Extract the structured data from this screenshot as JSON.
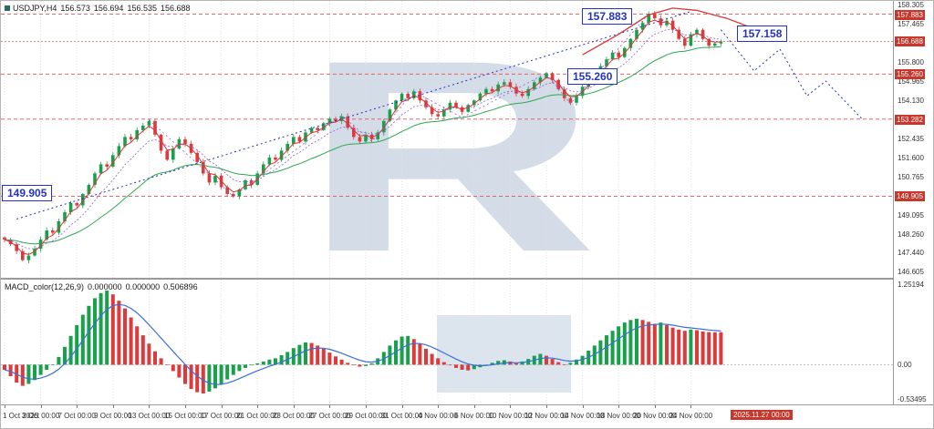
{
  "header": {
    "symbol": "USDJPY,H4",
    "open": "156.573",
    "high": "156.694",
    "low": "156.535",
    "close": "156.688"
  },
  "macd_header": {
    "name": "MACD_color(12,26,9)",
    "values": [
      "0.000000",
      "0.000000",
      "0.506896"
    ]
  },
  "watermark": {
    "letter": "R"
  },
  "colors": {
    "up": "#18a14b",
    "down": "#dd3b3b",
    "ma_fast": "#d93636",
    "ma_slow": "#30a752",
    "ma_mid": "#8a63d2",
    "signal": "#3a6fd8",
    "level": "#e05555",
    "annotation": "#2433c0",
    "badge_bg": "#c8372c",
    "grid": "#e3e3e3"
  },
  "chart_data": [
    {
      "type": "candlestick",
      "title": "USDJPY,H4",
      "timeframe": "H4",
      "x_ticks": [
        "1 Oct 2025",
        "3 Oct 00:00",
        "7 Oct 00:00",
        "9 Oct 00:00",
        "13 Oct 00:00",
        "15 Oct 00:00",
        "17 Oct 00:00",
        "21 Oct 00:00",
        "23 Oct 00:00",
        "27 Oct 00:00",
        "29 Oct 00:00",
        "31 Oct 00:00",
        "4 Nov 00:00",
        "6 Nov 00:00",
        "10 Nov 00:00",
        "12 Nov 00:00",
        "14 Nov 00:00",
        "18 Nov 00:00",
        "20 Nov 00:00",
        "24 Nov 00:00"
      ],
      "future_tick": "2025.11.27 00:00",
      "y_ticks": [
        158.305,
        157.465,
        156.625,
        155.8,
        154.965,
        154.13,
        153.295,
        152.435,
        151.6,
        150.765,
        149.93,
        149.095,
        148.26,
        147.44,
        146.605
      ],
      "y_range": [
        146.325,
        158.465
      ],
      "levels": [
        157.883,
        155.26,
        153.282,
        149.905
      ],
      "level_labels": [
        157.883,
        155.26,
        153.282,
        149.905
      ],
      "current_price": 156.688,
      "closes": [
        148.0,
        147.8,
        147.5,
        147.1,
        147.3,
        147.6,
        148.0,
        148.4,
        148.3,
        148.8,
        149.2,
        149.6,
        149.5,
        150.0,
        150.4,
        150.9,
        151.3,
        151.2,
        151.7,
        152.1,
        152.5,
        152.4,
        152.8,
        153.0,
        153.2,
        152.6,
        151.9,
        151.5,
        152.0,
        152.4,
        152.2,
        151.8,
        151.4,
        150.9,
        150.5,
        150.8,
        150.3,
        150.0,
        149.9,
        150.2,
        150.6,
        150.4,
        150.9,
        151.3,
        151.6,
        151.5,
        151.9,
        152.2,
        152.5,
        152.3,
        152.7,
        152.9,
        152.8,
        153.1,
        153.3,
        153.2,
        153.4,
        152.9,
        152.5,
        152.3,
        152.6,
        152.4,
        152.7,
        153.2,
        153.7,
        154.1,
        154.4,
        154.2,
        154.5,
        154.1,
        153.8,
        153.5,
        153.4,
        153.7,
        154.0,
        153.8,
        153.6,
        153.9,
        154.1,
        154.4,
        154.6,
        154.5,
        154.8,
        154.9,
        154.7,
        154.4,
        154.3,
        154.6,
        154.9,
        155.1,
        155.3,
        155.0,
        154.6,
        154.2,
        154.0,
        154.3,
        154.7,
        155.0,
        155.3,
        155.6,
        155.9,
        156.2,
        156.0,
        156.4,
        156.8,
        157.2,
        157.5,
        157.9,
        157.7,
        157.4,
        157.6,
        157.2,
        156.8,
        156.5,
        157.0,
        157.2,
        156.8,
        156.5,
        156.6,
        156.688
      ],
      "annotations": [
        {
          "text": "157.883",
          "x": 637,
          "y": 8
        },
        {
          "text": "157.158",
          "x": 807,
          "y": 27
        },
        {
          "text": "155.260",
          "x": 621,
          "y": 74
        },
        {
          "text": "149.905",
          "x": 1,
          "y": 202
        }
      ],
      "trendline": [
        [
          2,
          148.9
        ],
        [
          114,
          158.0
        ]
      ],
      "zigzag": [
        [
          24,
          153.25
        ],
        [
          38,
          149.9
        ],
        [
          56,
          153.45
        ],
        [
          61,
          152.3
        ],
        [
          68,
          154.5
        ],
        [
          76,
          153.35
        ],
        [
          90,
          155.3
        ],
        [
          94,
          153.95
        ],
        [
          107,
          157.9
        ]
      ],
      "projection": [
        [
          119,
          157.2
        ],
        [
          124.5,
          155.4
        ],
        [
          128.8,
          156.35
        ],
        [
          133.3,
          154.3
        ],
        [
          136.4,
          154.95
        ],
        [
          142.4,
          153.3
        ]
      ],
      "red_curve": [
        [
          96,
          156.1
        ],
        [
          102,
          157.0
        ],
        [
          107,
          157.85
        ],
        [
          111,
          158.15
        ],
        [
          115,
          158.05
        ],
        [
          120,
          157.7
        ],
        [
          124,
          157.3
        ],
        [
          127,
          157.05
        ]
      ]
    },
    {
      "type": "macd_histogram",
      "label": "MACD_color(12,26,9)",
      "y_ticks": [
        1.25194,
        0,
        -0.53495
      ],
      "y_range": [
        -0.62,
        1.33
      ],
      "values": [
        -0.08,
        -0.18,
        -0.28,
        -0.33,
        -0.3,
        -0.24,
        -0.16,
        -0.08,
        0.0,
        0.12,
        0.28,
        0.45,
        0.62,
        0.78,
        0.92,
        1.04,
        1.12,
        1.16,
        1.1,
        1.0,
        0.88,
        0.74,
        0.6,
        0.46,
        0.33,
        0.21,
        0.1,
        0.0,
        -0.1,
        -0.2,
        -0.3,
        -0.38,
        -0.43,
        -0.45,
        -0.42,
        -0.37,
        -0.3,
        -0.23,
        -0.16,
        -0.1,
        -0.05,
        -0.01,
        0.02,
        0.05,
        0.08,
        0.1,
        0.15,
        0.2,
        0.26,
        0.31,
        0.35,
        0.34,
        0.3,
        0.25,
        0.19,
        0.13,
        0.08,
        0.03,
        -0.01,
        -0.03,
        -0.02,
        0.02,
        0.1,
        0.2,
        0.3,
        0.38,
        0.44,
        0.45,
        0.4,
        0.33,
        0.25,
        0.17,
        0.1,
        0.04,
        -0.01,
        -0.05,
        -0.08,
        -0.09,
        -0.07,
        -0.04,
        0.0,
        0.03,
        0.06,
        0.07,
        0.05,
        0.02,
        0.05,
        0.09,
        0.14,
        0.17,
        0.14,
        0.09,
        0.04,
        0.0,
        0.03,
        0.08,
        0.14,
        0.22,
        0.3,
        0.38,
        0.46,
        0.53,
        0.6,
        0.66,
        0.7,
        0.72,
        0.7,
        0.67,
        0.64,
        0.66,
        0.62,
        0.58,
        0.55,
        0.53,
        0.55,
        0.54,
        0.52,
        0.51,
        0.508,
        0.506896
      ]
    }
  ]
}
